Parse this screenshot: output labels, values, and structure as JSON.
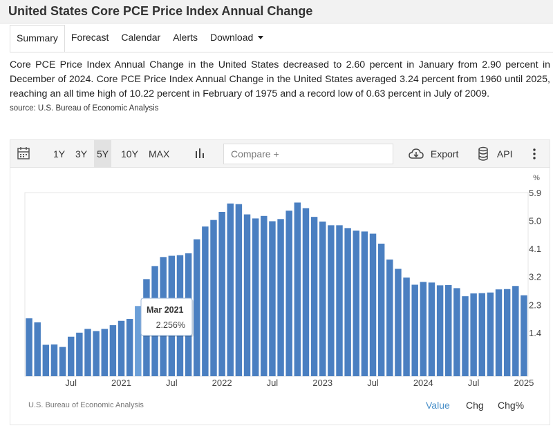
{
  "header": {
    "title": "United States Core PCE Price Index Annual Change"
  },
  "tabs": [
    {
      "label": "Summary"
    },
    {
      "label": "Forecast"
    },
    {
      "label": "Calendar"
    },
    {
      "label": "Alerts"
    },
    {
      "label": "Download"
    }
  ],
  "description": "Core PCE Price Index Annual Change in the United States decreased to 2.60 percent in January from 2.90 percent in December of 2024. Core PCE Price Index Annual Change in the United States averaged 3.24 percent from 1960 until 2025, reaching an all time high of 10.22 percent in February of 1975 and a record low of 0.63 percent in July of 2009.",
  "source": "source: U.S. Bureau of Economic Analysis",
  "toolbar": {
    "ranges": [
      "1Y",
      "3Y",
      "5Y",
      "10Y",
      "MAX"
    ],
    "active_range": "5Y",
    "compare_placeholder": "Compare +",
    "export_label": "Export",
    "api_label": "API"
  },
  "chart_footer": {
    "source": "U.S. Bureau of Economic Analysis",
    "modes": [
      "Value",
      "Chg",
      "Chg%"
    ],
    "active_mode": "Value"
  },
  "chart_data": {
    "type": "bar",
    "unit_label": "%",
    "color": "#4a7fc1",
    "highlight_color": "#6b9fd8",
    "categories": [
      "2020-02",
      "2020-03",
      "2020-04",
      "2020-05",
      "2020-06",
      "2020-07",
      "2020-08",
      "2020-09",
      "2020-10",
      "2020-11",
      "2020-12",
      "2021-01",
      "2021-02",
      "2021-03",
      "2021-04",
      "2021-05",
      "2021-06",
      "2021-07",
      "2021-08",
      "2021-09",
      "2021-10",
      "2021-11",
      "2021-12",
      "2022-01",
      "2022-02",
      "2022-03",
      "2022-04",
      "2022-05",
      "2022-06",
      "2022-07",
      "2022-08",
      "2022-09",
      "2022-10",
      "2022-11",
      "2022-12",
      "2023-01",
      "2023-02",
      "2023-03",
      "2023-04",
      "2023-05",
      "2023-06",
      "2023-07",
      "2023-08",
      "2023-09",
      "2023-10",
      "2023-11",
      "2023-12",
      "2024-01",
      "2024-02",
      "2024-03",
      "2024-04",
      "2024-05",
      "2024-06",
      "2024-07",
      "2024-08",
      "2024-09",
      "2024-10",
      "2024-11",
      "2024-12",
      "2025-01"
    ],
    "values": [
      1.86,
      1.73,
      1.01,
      1.02,
      0.94,
      1.27,
      1.4,
      1.52,
      1.45,
      1.52,
      1.64,
      1.78,
      1.84,
      2.256,
      3.12,
      3.54,
      3.83,
      3.87,
      3.89,
      3.95,
      4.4,
      4.81,
      5.02,
      5.28,
      5.55,
      5.53,
      5.2,
      5.07,
      5.15,
      4.98,
      5.05,
      5.32,
      5.58,
      5.4,
      5.12,
      4.97,
      4.85,
      4.85,
      4.76,
      4.68,
      4.65,
      4.58,
      4.26,
      3.75,
      3.45,
      3.17,
      2.94,
      3.03,
      3.01,
      2.92,
      2.93,
      2.83,
      2.57,
      2.66,
      2.67,
      2.69,
      2.79,
      2.8,
      2.9,
      2.6
    ],
    "x_tick_labels": [
      {
        "index": 5,
        "label": "Jul"
      },
      {
        "index": 11,
        "label": "2021"
      },
      {
        "index": 17,
        "label": "Jul"
      },
      {
        "index": 23,
        "label": "2022"
      },
      {
        "index": 29,
        "label": "Jul"
      },
      {
        "index": 35,
        "label": "2023"
      },
      {
        "index": 41,
        "label": "Jul"
      },
      {
        "index": 47,
        "label": "2024"
      },
      {
        "index": 53,
        "label": "Jul"
      },
      {
        "index": 59,
        "label": "2025"
      }
    ],
    "y_ticks": [
      1.4,
      2.3,
      3.2,
      4.1,
      5.0,
      5.9
    ],
    "y_tick_labels": [
      "1.4",
      "2.3",
      "3.2",
      "4.1",
      "5.0",
      "5.9"
    ],
    "ylim": [
      0,
      5.9
    ],
    "grid": false,
    "tooltip": {
      "index": 13,
      "title": "Mar 2021",
      "value": "2.256%"
    }
  }
}
